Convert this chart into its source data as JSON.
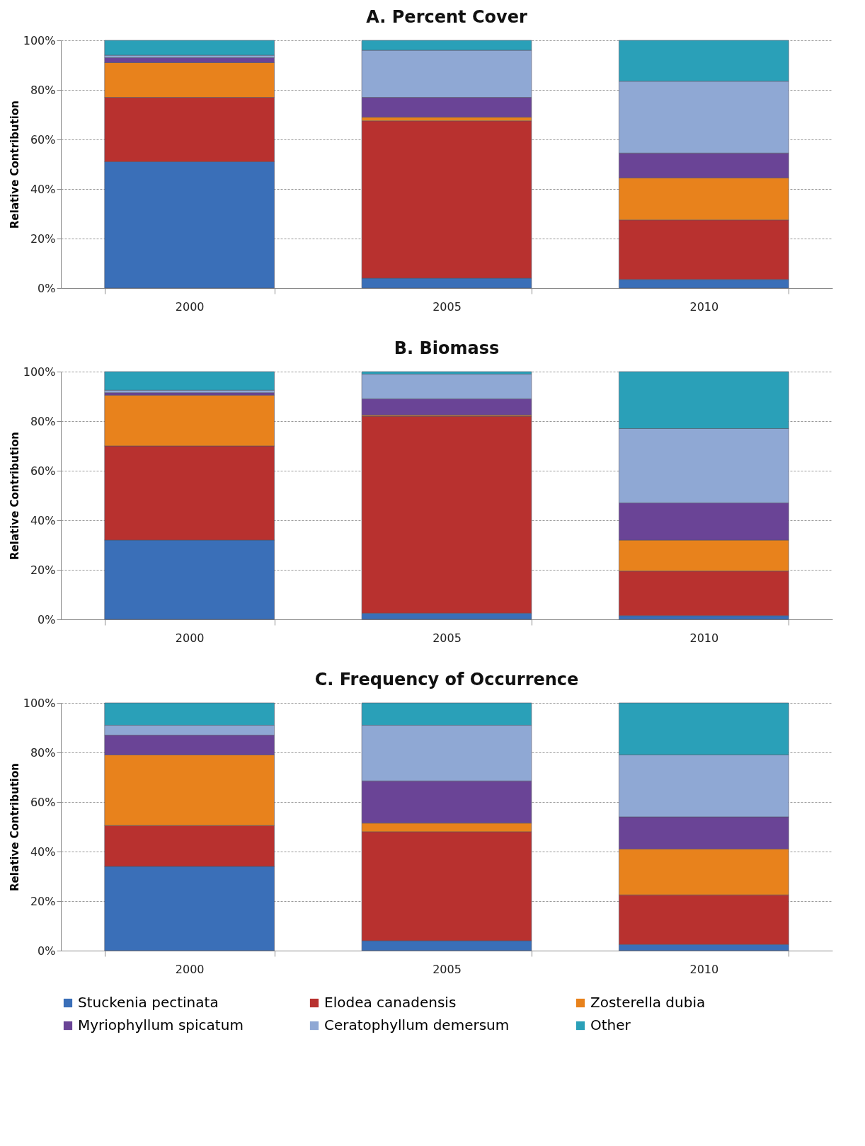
{
  "chart_data": [
    {
      "type": "bar",
      "title": "A.  Percent Cover",
      "ylabel": "Relative Contribution",
      "categories": [
        "2000",
        "2005",
        "2010"
      ],
      "stacked": true,
      "ylim": [
        0,
        100
      ],
      "yticks": [
        {
          "value": 0,
          "label": "0%"
        },
        {
          "value": 20,
          "label": "20%"
        },
        {
          "value": 40,
          "label": "40%"
        },
        {
          "value": 60,
          "label": "60%"
        },
        {
          "value": 80,
          "label": "80%"
        },
        {
          "value": 100,
          "label": "100%"
        }
      ],
      "grid": "y",
      "series": [
        {
          "color": "#3a6fb8",
          "values": [
            51,
            4,
            3.5
          ]
        },
        {
          "color": "#b8312f",
          "values": [
            26,
            63.5,
            24
          ]
        },
        {
          "color": "#e8821c",
          "values": [
            14,
            1.5,
            17
          ]
        },
        {
          "color": "#6a4496",
          "values": [
            2,
            8,
            10
          ]
        },
        {
          "color": "#8fa8d4",
          "values": [
            1,
            19,
            29
          ]
        },
        {
          "color": "#2aa0b8",
          "values": [
            6,
            4,
            16.5
          ]
        }
      ]
    },
    {
      "type": "bar",
      "title": "B.  Biomass",
      "ylabel": "Relative Contribution",
      "categories": [
        "2000",
        "2005",
        "2010"
      ],
      "stacked": true,
      "ylim": [
        0,
        100
      ],
      "yticks": [
        {
          "value": 0,
          "label": "0%"
        },
        {
          "value": 20,
          "label": "20%"
        },
        {
          "value": 40,
          "label": "40%"
        },
        {
          "value": 60,
          "label": "60%"
        },
        {
          "value": 80,
          "label": "80%"
        },
        {
          "value": 100,
          "label": "100%"
        }
      ],
      "grid": "y",
      "series": [
        {
          "color": "#3a6fb8",
          "values": [
            32,
            2.5,
            1.5
          ]
        },
        {
          "color": "#b8312f",
          "values": [
            38,
            79.5,
            18
          ]
        },
        {
          "color": "#e8821c",
          "values": [
            20.5,
            0.5,
            12.5
          ]
        },
        {
          "color": "#6a4496",
          "values": [
            1,
            6.5,
            15
          ]
        },
        {
          "color": "#8fa8d4",
          "values": [
            1,
            10,
            30
          ]
        },
        {
          "color": "#2aa0b8",
          "values": [
            7.5,
            1,
            23
          ]
        }
      ]
    },
    {
      "type": "bar",
      "title": "C.  Frequency of Occurrence",
      "ylabel": "Relative Contribution",
      "categories": [
        "2000",
        "2005",
        "2010"
      ],
      "stacked": true,
      "ylim": [
        0,
        100
      ],
      "yticks": [
        {
          "value": 0,
          "label": "0%"
        },
        {
          "value": 20,
          "label": "20%"
        },
        {
          "value": 40,
          "label": "40%"
        },
        {
          "value": 60,
          "label": "60%"
        },
        {
          "value": 80,
          "label": "80%"
        },
        {
          "value": 100,
          "label": "100%"
        }
      ],
      "grid": "y",
      "legend": "bottom",
      "series": [
        {
          "name": "Stuckenia pectinata",
          "color": "#3a6fb8",
          "values": [
            34,
            4,
            2.5
          ]
        },
        {
          "name": "Elodea canadensis",
          "color": "#b8312f",
          "values": [
            16.5,
            44,
            20
          ]
        },
        {
          "name": "Zosterella dubia",
          "color": "#e8821c",
          "values": [
            28.5,
            3.5,
            18.5
          ]
        },
        {
          "name": "Myriophyllum spicatum",
          "color": "#6a4496",
          "values": [
            8,
            17,
            13
          ]
        },
        {
          "name": "Ceratophyllum demersum",
          "color": "#8fa8d4",
          "values": [
            4,
            22.5,
            25
          ]
        },
        {
          "name": "Other",
          "color": "#2aa0b8",
          "values": [
            9,
            9,
            21
          ]
        }
      ]
    }
  ]
}
